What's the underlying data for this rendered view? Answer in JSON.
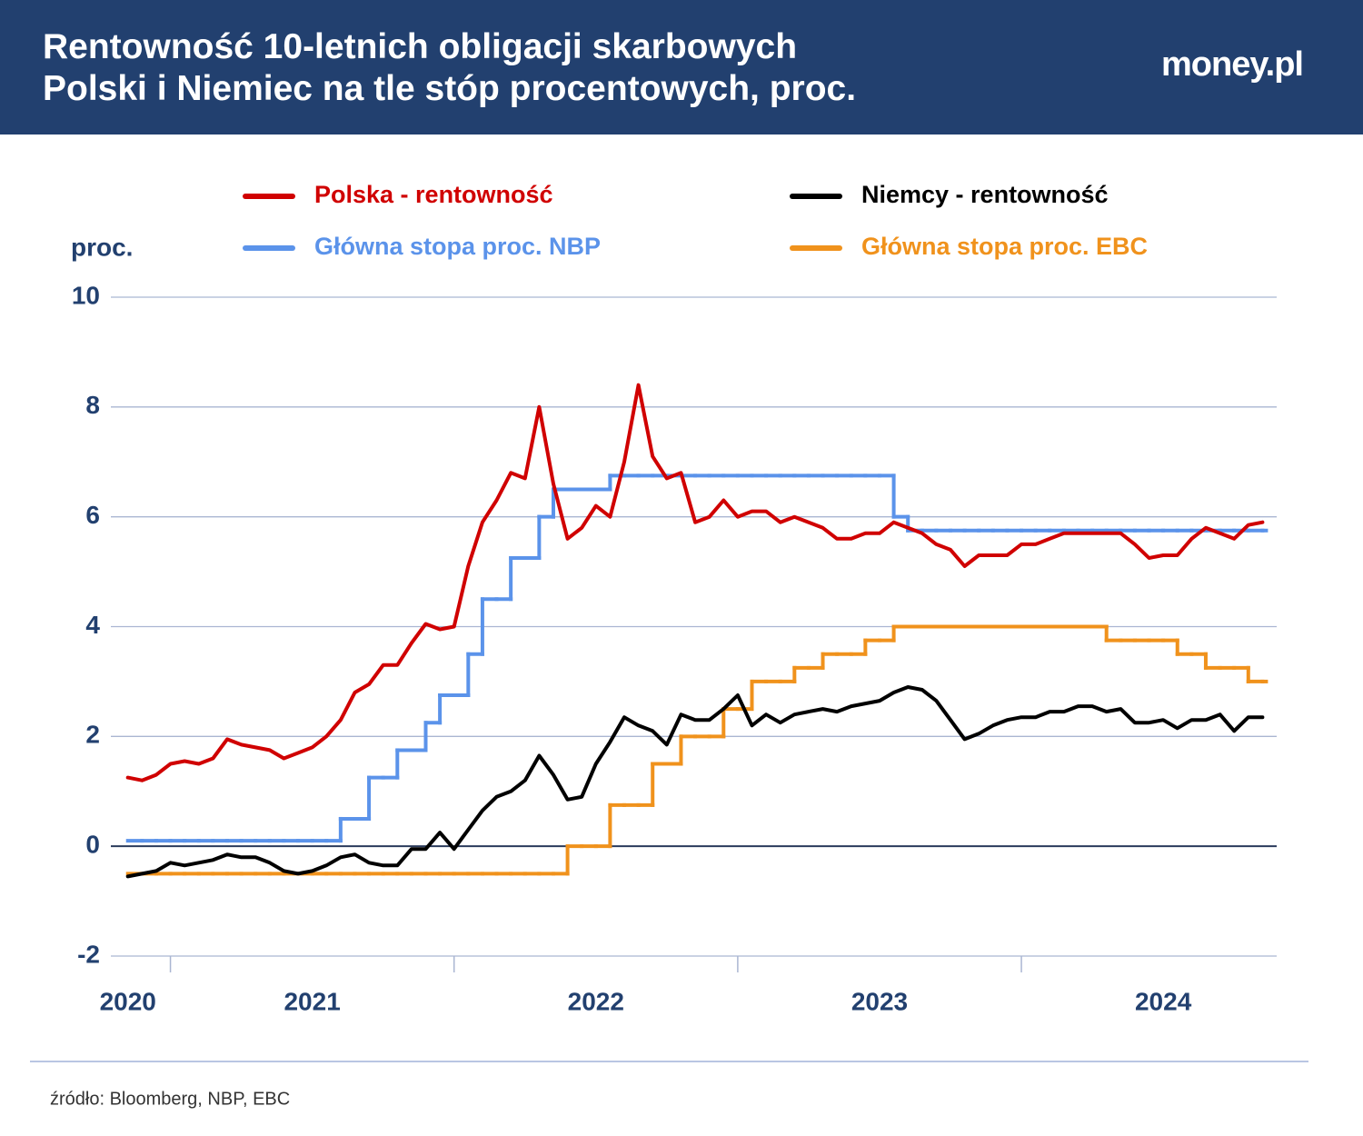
{
  "chart_data": {
    "type": "line",
    "title_lines": [
      "Rentowność 10-letnich obligacji skarbowych",
      "Polski i Niemiec na tle stóp procentowych, proc."
    ],
    "logo": "money.pl",
    "y_label": "proc.",
    "source": "źródło: Bloomberg, NBP, EBC",
    "xlim": [
      2020.79,
      2024.9
    ],
    "xticks": [
      {
        "value": 2020.85,
        "label": "2020"
      },
      {
        "value": 2021.5,
        "label": "2021"
      },
      {
        "value": 2022.5,
        "label": "2022"
      },
      {
        "value": 2023.5,
        "label": "2023"
      },
      {
        "value": 2024.5,
        "label": "2024"
      }
    ],
    "xtick_marks": [
      2021,
      2022,
      2023,
      2024
    ],
    "ylim": [
      -2,
      10
    ],
    "yticks": [
      10,
      8,
      6,
      4,
      2,
      0,
      -2
    ],
    "grid": true,
    "x": [
      2020.85,
      2020.9,
      2020.95,
      2021,
      2021.05,
      2021.1,
      2021.15,
      2021.2,
      2021.25,
      2021.3,
      2021.35,
      2021.4,
      2021.45,
      2021.5,
      2021.55,
      2021.6,
      2021.65,
      2021.7,
      2021.75,
      2021.8,
      2021.85,
      2021.9,
      2021.95,
      2022,
      2022.05,
      2022.1,
      2022.15,
      2022.2,
      2022.25,
      2022.3,
      2022.35,
      2022.4,
      2022.45,
      2022.5,
      2022.55,
      2022.6,
      2022.65,
      2022.7,
      2022.75,
      2022.8,
      2022.85,
      2022.9,
      2022.95,
      2023,
      2023.05,
      2023.1,
      2023.15,
      2023.2,
      2023.25,
      2023.3,
      2023.35,
      2023.4,
      2023.45,
      2023.5,
      2023.55,
      2023.6,
      2023.65,
      2023.7,
      2023.75,
      2023.8,
      2023.85,
      2023.9,
      2023.95,
      2024,
      2024.05,
      2024.1,
      2024.15,
      2024.2,
      2024.25,
      2024.3,
      2024.35,
      2024.4,
      2024.45,
      2024.5,
      2024.55,
      2024.6,
      2024.65,
      2024.7,
      2024.75,
      2024.8,
      2024.85
    ],
    "series": [
      {
        "name": "Polska - rentowność",
        "color": "#d00000",
        "step": false,
        "values": [
          1.25,
          1.2,
          1.3,
          1.5,
          1.55,
          1.5,
          1.6,
          1.95,
          1.85,
          1.8,
          1.75,
          1.6,
          1.7,
          1.8,
          2.0,
          2.3,
          2.8,
          2.95,
          3.3,
          3.3,
          3.7,
          4.05,
          3.95,
          4.0,
          5.1,
          5.9,
          6.3,
          6.8,
          6.7,
          8.0,
          6.6,
          5.6,
          5.8,
          6.2,
          6.0,
          7.0,
          8.4,
          7.1,
          6.7,
          6.8,
          5.9,
          6.0,
          6.3,
          6.0,
          6.1,
          6.1,
          5.9,
          6.0,
          5.9,
          5.8,
          5.6,
          5.6,
          5.7,
          5.7,
          5.9,
          5.8,
          5.7,
          5.5,
          5.4,
          5.1,
          5.3,
          5.3,
          5.3,
          5.5,
          5.5,
          5.6,
          5.7,
          5.7,
          5.7,
          5.7,
          5.7,
          5.5,
          5.25,
          5.3,
          5.3,
          5.6,
          5.8,
          5.7,
          5.6,
          5.85,
          5.9
        ]
      },
      {
        "name": "Niemcy - rentowność",
        "color": "#000000",
        "step": false,
        "values": [
          -0.55,
          -0.5,
          -0.45,
          -0.3,
          -0.35,
          -0.3,
          -0.25,
          -0.15,
          -0.2,
          -0.2,
          -0.3,
          -0.45,
          -0.5,
          -0.45,
          -0.35,
          -0.2,
          -0.15,
          -0.3,
          -0.35,
          -0.35,
          -0.05,
          -0.05,
          0.25,
          -0.05,
          0.3,
          0.65,
          0.9,
          1.0,
          1.2,
          1.65,
          1.3,
          0.85,
          0.9,
          1.5,
          1.9,
          2.35,
          2.2,
          2.1,
          1.85,
          2.4,
          2.3,
          2.3,
          2.5,
          2.75,
          2.2,
          2.4,
          2.25,
          2.4,
          2.45,
          2.5,
          2.45,
          2.55,
          2.6,
          2.65,
          2.8,
          2.9,
          2.85,
          2.65,
          2.3,
          1.95,
          2.05,
          2.2,
          2.3,
          2.35,
          2.35,
          2.45,
          2.45,
          2.55,
          2.55,
          2.45,
          2.5,
          2.25,
          2.25,
          2.3,
          2.15,
          2.3,
          2.3,
          2.4,
          2.1,
          2.35,
          2.35
        ]
      },
      {
        "name": "Główna stopa proc. NBP",
        "color": "#5b93ea",
        "step": true,
        "values": [
          0.1,
          0.1,
          0.1,
          0.1,
          0.1,
          0.1,
          0.1,
          0.1,
          0.1,
          0.1,
          0.1,
          0.1,
          0.1,
          0.1,
          0.1,
          0.5,
          0.5,
          1.25,
          1.25,
          1.75,
          1.75,
          2.25,
          2.75,
          2.75,
          3.5,
          4.5,
          4.5,
          5.25,
          5.25,
          6.0,
          6.5,
          6.5,
          6.5,
          6.5,
          6.75,
          6.75,
          6.75,
          6.75,
          6.75,
          6.75,
          6.75,
          6.75,
          6.75,
          6.75,
          6.75,
          6.75,
          6.75,
          6.75,
          6.75,
          6.75,
          6.75,
          6.75,
          6.75,
          6.75,
          6.0,
          5.75,
          5.75,
          5.75,
          5.75,
          5.75,
          5.75,
          5.75,
          5.75,
          5.75,
          5.75,
          5.75,
          5.75,
          5.75,
          5.75,
          5.75,
          5.75,
          5.75,
          5.75,
          5.75,
          5.75,
          5.75,
          5.75,
          5.75,
          5.75,
          5.75,
          5.75
        ]
      },
      {
        "name": "Główna stopa proc. EBC",
        "color": "#f0921c",
        "step": true,
        "values": [
          -0.5,
          -0.5,
          -0.5,
          -0.5,
          -0.5,
          -0.5,
          -0.5,
          -0.5,
          -0.5,
          -0.5,
          -0.5,
          -0.5,
          -0.5,
          -0.5,
          -0.5,
          -0.5,
          -0.5,
          -0.5,
          -0.5,
          -0.5,
          -0.5,
          -0.5,
          -0.5,
          -0.5,
          -0.5,
          -0.5,
          -0.5,
          -0.5,
          -0.5,
          -0.5,
          -0.5,
          0,
          0,
          0,
          0.75,
          0.75,
          0.75,
          1.5,
          1.5,
          2.0,
          2.0,
          2.0,
          2.5,
          2.5,
          3.0,
          3.0,
          3.0,
          3.25,
          3.25,
          3.5,
          3.5,
          3.5,
          3.75,
          3.75,
          4.0,
          4.0,
          4.0,
          4.0,
          4.0,
          4.0,
          4.0,
          4.0,
          4.0,
          4.0,
          4.0,
          4.0,
          4.0,
          4.0,
          4.0,
          3.75,
          3.75,
          3.75,
          3.75,
          3.75,
          3.5,
          3.5,
          3.25,
          3.25,
          3.25,
          3.0,
          3.0
        ]
      }
    ]
  }
}
